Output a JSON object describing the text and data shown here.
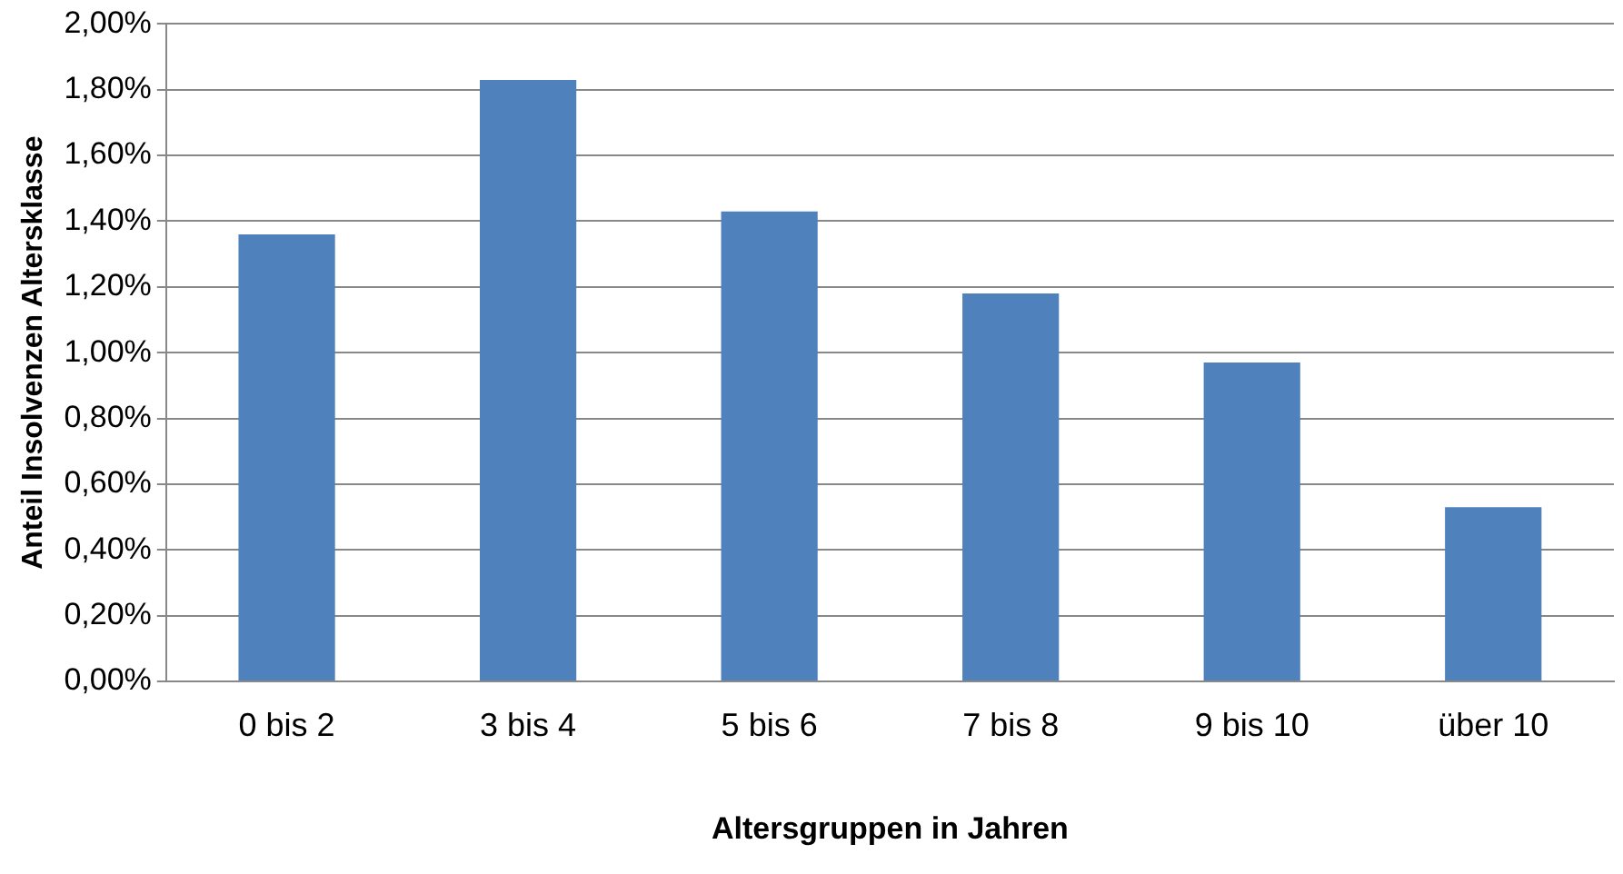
{
  "chart_data": {
    "type": "bar",
    "xlabel": "Altersgruppen in Jahren",
    "ylabel": "Anteil Insolvenzen Altersklasse",
    "categories": [
      "0 bis 2",
      "3 bis 4",
      "5 bis 6",
      "7 bis 8",
      "9 bis 10",
      "über 10"
    ],
    "values": [
      1.36,
      1.83,
      1.43,
      1.18,
      0.97,
      0.53
    ],
    "color": "#4f81bd",
    "ylim": [
      0,
      2
    ],
    "yticks": [
      {
        "value": 0,
        "label": "0,00%"
      },
      {
        "value": 0.2,
        "label": "0,20%"
      },
      {
        "value": 0.4,
        "label": "0,40%"
      },
      {
        "value": 0.6,
        "label": "0,60%"
      },
      {
        "value": 0.8,
        "label": "0,80%"
      },
      {
        "value": 1,
        "label": "1,00%"
      },
      {
        "value": 1.2,
        "label": "1,20%"
      },
      {
        "value": 1.4,
        "label": "1,40%"
      },
      {
        "value": 1.6,
        "label": "1,60%"
      },
      {
        "value": 1.8,
        "label": "1,80%"
      },
      {
        "value": 2,
        "label": "2,00%"
      }
    ],
    "grid": "y",
    "legend": false
  }
}
